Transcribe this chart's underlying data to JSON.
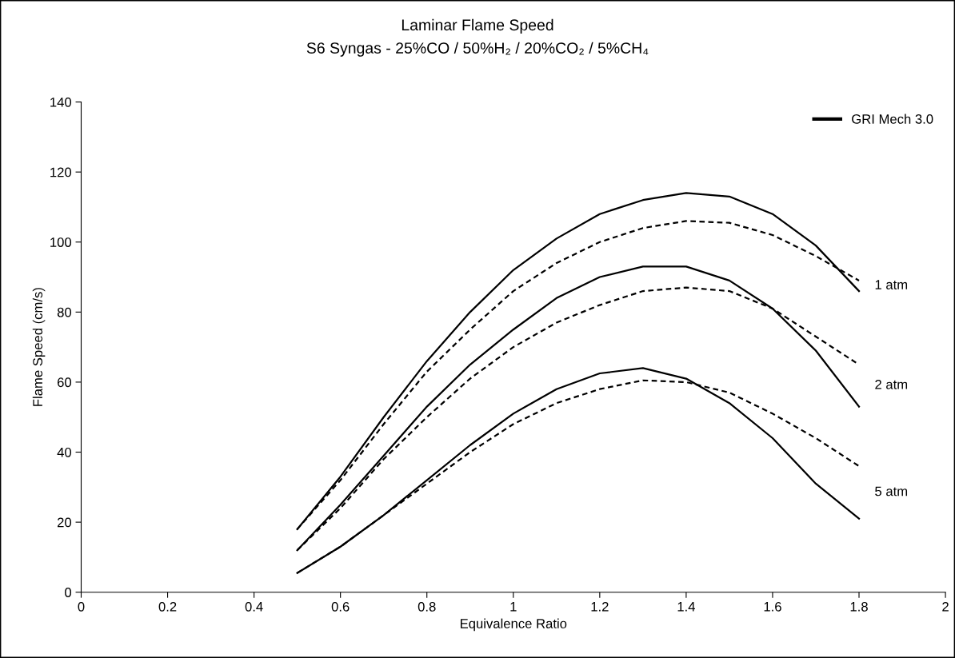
{
  "chart_data": {
    "type": "line",
    "title": "Laminar Flame Speed",
    "subtitle": "S6 Syngas - 25%CO / 50%H₂ / 20%CO₂ / 5%CH₄",
    "xlabel": "Equivalence Ratio",
    "ylabel": "Flame Speed (cm/s)",
    "x": [
      0.5,
      0.6,
      0.7,
      0.8,
      0.9,
      1.0,
      1.1,
      1.2,
      1.3,
      1.4,
      1.5,
      1.6,
      1.7,
      1.8
    ],
    "series": [
      {
        "name": "GRI Mech 3.0",
        "color": "#000000",
        "line_style": "solid",
        "values": [
          18,
          33,
          50,
          66,
          80,
          92,
          101,
          108,
          112,
          114,
          113,
          108,
          99,
          86
        ]
      },
      {
        "color": "#000000",
        "line_style": "dashed",
        "values": [
          18,
          32,
          48,
          63,
          75,
          86,
          94,
          100,
          104,
          106,
          105.5,
          102,
          96,
          89
        ]
      },
      {
        "color": "#000000",
        "line_style": "solid",
        "values": [
          12,
          25,
          39,
          53,
          65,
          75,
          84,
          90,
          93,
          93,
          89,
          81,
          69,
          53
        ]
      },
      {
        "color": "#000000",
        "line_style": "dashed",
        "values": [
          12,
          24,
          38,
          50,
          61,
          70,
          77,
          82,
          86,
          87,
          86,
          81,
          73,
          65
        ]
      },
      {
        "color": "#000000",
        "line_style": "solid",
        "values": [
          5.5,
          13,
          22,
          32,
          42,
          51,
          58,
          62.5,
          64,
          61,
          54,
          44,
          31,
          21
        ]
      },
      {
        "color": "#000000",
        "line_style": "dashed",
        "values": [
          5.5,
          13,
          22,
          31,
          40,
          48,
          54,
          58,
          60.5,
          60,
          57,
          51,
          44,
          36
        ]
      }
    ],
    "annotations": [
      "1 atm",
      "2 atm",
      "5 atm"
    ],
    "xlim": [
      0,
      2
    ],
    "xticks": [
      0,
      0.2,
      0.4,
      0.6,
      0.8,
      1,
      1.2,
      1.4,
      1.6,
      1.8,
      2
    ],
    "ylim": [
      0,
      140
    ],
    "yticks": [
      0,
      20,
      40,
      60,
      80,
      100,
      120,
      140
    ],
    "grid": false,
    "legend": "top right",
    "marker": "none"
  }
}
